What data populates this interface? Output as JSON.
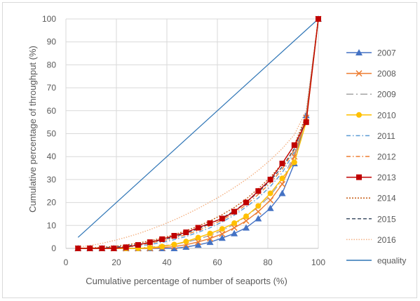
{
  "chart_data": {
    "type": "line",
    "title": "",
    "xlabel": "Cumulative percentage of number of seaports (%)",
    "ylabel": "Cumulative percentage of throughput (%)",
    "xlim": [
      0,
      100
    ],
    "ylim": [
      0,
      100
    ],
    "x_ticks": [
      0,
      20,
      40,
      60,
      80,
      100
    ],
    "y_ticks": [
      0,
      10,
      20,
      30,
      40,
      50,
      60,
      70,
      80,
      90,
      100
    ],
    "grid": true,
    "legend_position": "right",
    "x": [
      4.8,
      9.5,
      14.3,
      19.0,
      23.8,
      28.6,
      33.3,
      38.1,
      42.9,
      47.6,
      52.4,
      57.1,
      61.9,
      66.7,
      71.4,
      76.2,
      81.0,
      85.7,
      90.5,
      95.2,
      100
    ],
    "series": [
      {
        "name": "2007",
        "color": "#4472c4",
        "style": "solid",
        "marker": "triangle",
        "values": [
          0,
          0,
          0,
          0,
          0,
          0,
          0,
          0,
          0,
          0.6,
          1.5,
          2.7,
          4.5,
          6.5,
          9,
          13,
          17.5,
          24,
          37,
          58,
          100
        ]
      },
      {
        "name": "2008",
        "color": "#ed7d31",
        "style": "solid",
        "marker": "x",
        "values": [
          0,
          0,
          0,
          0,
          0,
          0,
          0,
          0.3,
          0.8,
          1.6,
          2.8,
          4.3,
          6.3,
          9,
          12,
          16,
          21,
          28,
          40,
          57,
          100
        ]
      },
      {
        "name": "2009",
        "color": "#a5a5a5",
        "style": "longdash",
        "marker": "none",
        "values": [
          0,
          0,
          0,
          0,
          0,
          0.2,
          0.5,
          1,
          1.7,
          2.7,
          4,
          5.7,
          7.8,
          10.5,
          14,
          18,
          23,
          30,
          41,
          57,
          100
        ]
      },
      {
        "name": "2010",
        "color": "#ffc000",
        "style": "solid",
        "marker": "circle",
        "values": [
          0,
          0,
          0,
          0,
          0,
          0,
          0.3,
          0.8,
          1.7,
          3,
          4.7,
          6.5,
          8.5,
          11,
          14,
          18.5,
          24,
          30.5,
          37.5,
          55,
          100
        ]
      },
      {
        "name": "2011",
        "color": "#5b9bd5",
        "style": "dashdot",
        "marker": "none",
        "values": [
          0,
          0,
          0,
          0.2,
          0.5,
          1,
          1.7,
          2.6,
          3.8,
          5.2,
          7,
          9,
          11.5,
          14.5,
          18,
          22,
          27,
          33,
          42,
          56,
          100
        ]
      },
      {
        "name": "2012",
        "color": "#ed7d31",
        "style": "dashdot",
        "marker": "none",
        "values": [
          0,
          0,
          0.2,
          0.5,
          0.9,
          1.5,
          2.3,
          3.3,
          4.5,
          6,
          7.8,
          9.9,
          12.4,
          15.3,
          19,
          23.5,
          28.5,
          34.5,
          43,
          57,
          100
        ]
      },
      {
        "name": "2013",
        "color": "#c00000",
        "style": "solid",
        "marker": "square",
        "values": [
          0,
          0,
          0,
          0,
          0.5,
          1.5,
          2.7,
          4,
          5.5,
          7,
          9,
          11,
          13,
          16,
          20,
          25,
          30,
          37,
          45,
          55,
          100
        ]
      },
      {
        "name": "2014",
        "color": "#c55a11",
        "style": "shortdot",
        "marker": "none",
        "values": [
          0,
          0.2,
          0.5,
          0.9,
          1.5,
          2.3,
          3.3,
          4.5,
          6,
          7.7,
          9.7,
          12,
          14.7,
          17.8,
          21.5,
          26,
          31,
          37,
          45,
          58,
          100
        ]
      },
      {
        "name": "2015",
        "color": "#44546a",
        "style": "dash",
        "marker": "none",
        "values": [
          0,
          0,
          0.2,
          0.5,
          1,
          1.7,
          2.6,
          3.7,
          5,
          6.6,
          8.5,
          10.7,
          13.3,
          16.3,
          20,
          24.5,
          29.5,
          35.5,
          43.5,
          57,
          100
        ]
      },
      {
        "name": "2016",
        "color": "#f4b183",
        "style": "dot",
        "marker": "none",
        "values": [
          0.5,
          1.2,
          2.2,
          3.4,
          4.8,
          6.4,
          8.2,
          10.2,
          12.4,
          14.8,
          17.4,
          20.2,
          23.2,
          26.5,
          30,
          34,
          38.5,
          43.5,
          49.5,
          60,
          100
        ]
      },
      {
        "name": "equality",
        "color": "#2e75b6",
        "style": "solid",
        "marker": "none",
        "thin": true,
        "x": [
          4.8,
          100
        ],
        "values": [
          4.8,
          100
        ]
      }
    ]
  }
}
